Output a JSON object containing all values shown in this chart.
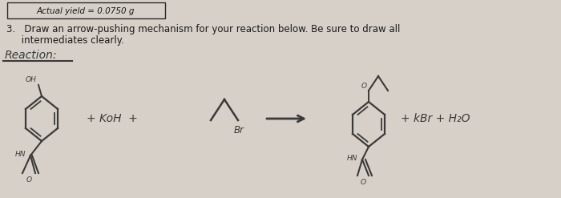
{
  "background_color": "#d6d0c8",
  "top_box_text": "Actual yield = 0.0750 g",
  "question_line1": "3.   Draw an arrow-pushing mechanism for your reaction below. Be sure to draw all",
  "question_line2": "     intermediates clearly.",
  "reaction_label": "Reaction:",
  "product2_text": "+ kBr + H₂O",
  "text_color": "#1a1a1a",
  "line_color": "#2a2a2a",
  "handwrite_color": "#3a3a3a"
}
